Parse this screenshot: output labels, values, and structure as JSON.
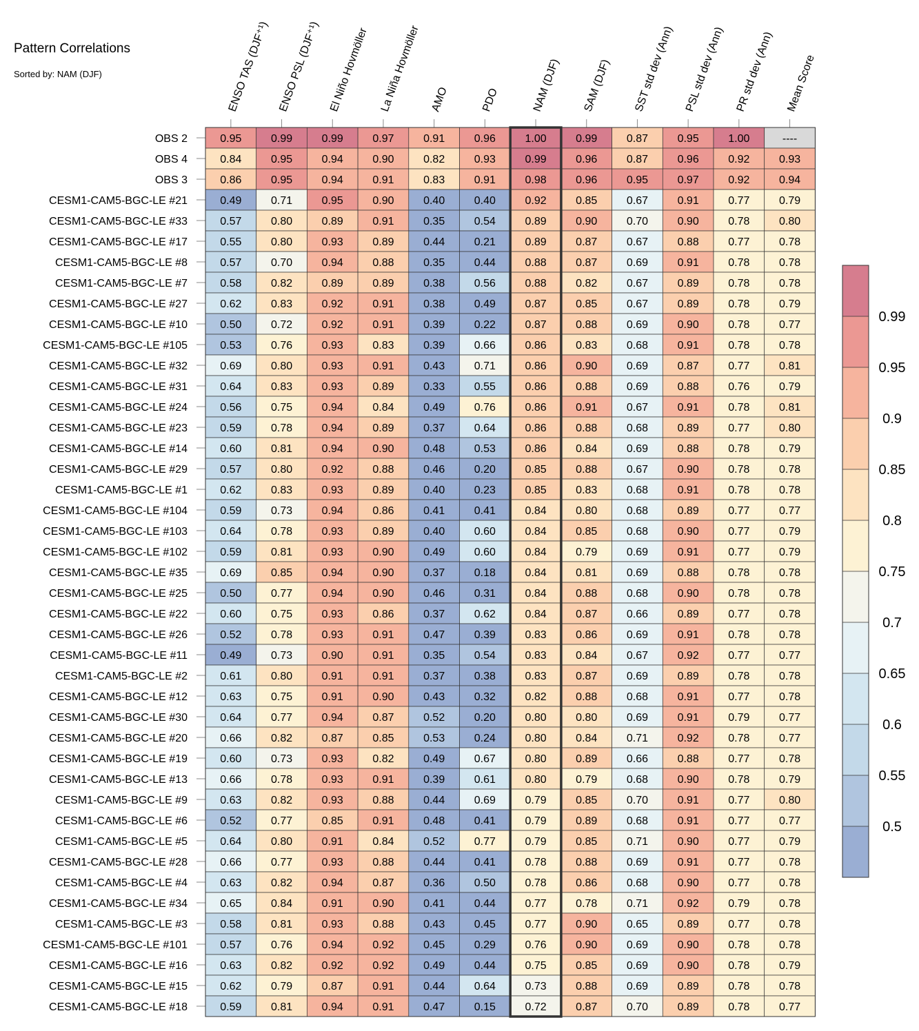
{
  "chart_data": {
    "type": "heatmap",
    "title": "Pattern Correlations",
    "subtitle": "Sorted by: NAM (DJF)",
    "highlighted_column": "NAM (DJF)",
    "columns": [
      "ENSO TAS (DJF⁺¹)",
      "ENSO PSL (DJF⁺¹)",
      "El Niño Hovmöller",
      "La Niña Hovmöller",
      "AMO",
      "PDO",
      "NAM (DJF)",
      "SAM (DJF)",
      "SST std dev (Ann)",
      "PSL std dev (Ann)",
      "PR std dev (Ann)",
      "Mean Score"
    ],
    "rows": [
      {
        "name": "OBS 2",
        "values": [
          "0.95",
          "0.99",
          "0.99",
          "0.97",
          "0.91",
          "0.96",
          "1.00",
          "0.99",
          "0.87",
          "0.95",
          "1.00",
          "----"
        ]
      },
      {
        "name": "OBS 4",
        "values": [
          "0.84",
          "0.95",
          "0.94",
          "0.90",
          "0.82",
          "0.93",
          "0.99",
          "0.96",
          "0.87",
          "0.96",
          "0.92",
          "0.93"
        ]
      },
      {
        "name": "OBS 3",
        "values": [
          "0.86",
          "0.95",
          "0.94",
          "0.91",
          "0.83",
          "0.91",
          "0.98",
          "0.96",
          "0.95",
          "0.97",
          "0.92",
          "0.94"
        ]
      },
      {
        "name": "CESM1-CAM5-BGC-LE #21",
        "values": [
          "0.49",
          "0.71",
          "0.95",
          "0.90",
          "0.40",
          "0.40",
          "0.92",
          "0.85",
          "0.67",
          "0.91",
          "0.77",
          "0.79"
        ]
      },
      {
        "name": "CESM1-CAM5-BGC-LE #33",
        "values": [
          "0.57",
          "0.80",
          "0.89",
          "0.91",
          "0.35",
          "0.54",
          "0.89",
          "0.90",
          "0.70",
          "0.90",
          "0.78",
          "0.80"
        ]
      },
      {
        "name": "CESM1-CAM5-BGC-LE #17",
        "values": [
          "0.55",
          "0.80",
          "0.93",
          "0.89",
          "0.44",
          "0.21",
          "0.89",
          "0.87",
          "0.67",
          "0.88",
          "0.77",
          "0.78"
        ]
      },
      {
        "name": "CESM1-CAM5-BGC-LE #8",
        "values": [
          "0.57",
          "0.70",
          "0.94",
          "0.88",
          "0.35",
          "0.44",
          "0.88",
          "0.87",
          "0.69",
          "0.91",
          "0.78",
          "0.78"
        ]
      },
      {
        "name": "CESM1-CAM5-BGC-LE #7",
        "values": [
          "0.58",
          "0.82",
          "0.89",
          "0.89",
          "0.38",
          "0.56",
          "0.88",
          "0.82",
          "0.67",
          "0.89",
          "0.78",
          "0.78"
        ]
      },
      {
        "name": "CESM1-CAM5-BGC-LE #27",
        "values": [
          "0.62",
          "0.83",
          "0.92",
          "0.91",
          "0.38",
          "0.49",
          "0.87",
          "0.85",
          "0.67",
          "0.89",
          "0.78",
          "0.79"
        ]
      },
      {
        "name": "CESM1-CAM5-BGC-LE #10",
        "values": [
          "0.50",
          "0.72",
          "0.92",
          "0.91",
          "0.39",
          "0.22",
          "0.87",
          "0.88",
          "0.69",
          "0.90",
          "0.78",
          "0.77"
        ]
      },
      {
        "name": "CESM1-CAM5-BGC-LE #105",
        "values": [
          "0.53",
          "0.76",
          "0.93",
          "0.83",
          "0.39",
          "0.66",
          "0.86",
          "0.83",
          "0.68",
          "0.91",
          "0.78",
          "0.78"
        ]
      },
      {
        "name": "CESM1-CAM5-BGC-LE #32",
        "values": [
          "0.69",
          "0.80",
          "0.93",
          "0.91",
          "0.43",
          "0.71",
          "0.86",
          "0.90",
          "0.69",
          "0.87",
          "0.77",
          "0.81"
        ]
      },
      {
        "name": "CESM1-CAM5-BGC-LE #31",
        "values": [
          "0.64",
          "0.83",
          "0.93",
          "0.89",
          "0.33",
          "0.55",
          "0.86",
          "0.88",
          "0.69",
          "0.88",
          "0.76",
          "0.79"
        ]
      },
      {
        "name": "CESM1-CAM5-BGC-LE #24",
        "values": [
          "0.56",
          "0.75",
          "0.94",
          "0.84",
          "0.49",
          "0.76",
          "0.86",
          "0.91",
          "0.67",
          "0.91",
          "0.78",
          "0.81"
        ]
      },
      {
        "name": "CESM1-CAM5-BGC-LE #23",
        "values": [
          "0.59",
          "0.78",
          "0.94",
          "0.89",
          "0.37",
          "0.64",
          "0.86",
          "0.88",
          "0.68",
          "0.89",
          "0.77",
          "0.80"
        ]
      },
      {
        "name": "CESM1-CAM5-BGC-LE #14",
        "values": [
          "0.60",
          "0.81",
          "0.94",
          "0.90",
          "0.48",
          "0.53",
          "0.86",
          "0.84",
          "0.69",
          "0.88",
          "0.78",
          "0.79"
        ]
      },
      {
        "name": "CESM1-CAM5-BGC-LE #29",
        "values": [
          "0.57",
          "0.80",
          "0.92",
          "0.88",
          "0.46",
          "0.20",
          "0.85",
          "0.88",
          "0.67",
          "0.90",
          "0.78",
          "0.78"
        ]
      },
      {
        "name": "CESM1-CAM5-BGC-LE #1",
        "values": [
          "0.62",
          "0.83",
          "0.93",
          "0.89",
          "0.40",
          "0.23",
          "0.85",
          "0.83",
          "0.68",
          "0.91",
          "0.78",
          "0.78"
        ]
      },
      {
        "name": "CESM1-CAM5-BGC-LE #104",
        "values": [
          "0.59",
          "0.73",
          "0.94",
          "0.86",
          "0.41",
          "0.41",
          "0.84",
          "0.80",
          "0.68",
          "0.89",
          "0.77",
          "0.77"
        ]
      },
      {
        "name": "CESM1-CAM5-BGC-LE #103",
        "values": [
          "0.64",
          "0.78",
          "0.93",
          "0.89",
          "0.40",
          "0.60",
          "0.84",
          "0.85",
          "0.68",
          "0.90",
          "0.77",
          "0.79"
        ]
      },
      {
        "name": "CESM1-CAM5-BGC-LE #102",
        "values": [
          "0.59",
          "0.81",
          "0.93",
          "0.90",
          "0.49",
          "0.60",
          "0.84",
          "0.79",
          "0.69",
          "0.91",
          "0.77",
          "0.79"
        ]
      },
      {
        "name": "CESM1-CAM5-BGC-LE #35",
        "values": [
          "0.69",
          "0.85",
          "0.94",
          "0.90",
          "0.37",
          "0.18",
          "0.84",
          "0.81",
          "0.69",
          "0.88",
          "0.78",
          "0.78"
        ]
      },
      {
        "name": "CESM1-CAM5-BGC-LE #25",
        "values": [
          "0.50",
          "0.77",
          "0.94",
          "0.90",
          "0.46",
          "0.31",
          "0.84",
          "0.88",
          "0.68",
          "0.90",
          "0.78",
          "0.78"
        ]
      },
      {
        "name": "CESM1-CAM5-BGC-LE #22",
        "values": [
          "0.60",
          "0.75",
          "0.93",
          "0.86",
          "0.37",
          "0.62",
          "0.84",
          "0.87",
          "0.66",
          "0.89",
          "0.77",
          "0.78"
        ]
      },
      {
        "name": "CESM1-CAM5-BGC-LE #26",
        "values": [
          "0.52",
          "0.78",
          "0.93",
          "0.91",
          "0.47",
          "0.39",
          "0.83",
          "0.86",
          "0.69",
          "0.91",
          "0.78",
          "0.78"
        ]
      },
      {
        "name": "CESM1-CAM5-BGC-LE #11",
        "values": [
          "0.49",
          "0.73",
          "0.90",
          "0.91",
          "0.35",
          "0.54",
          "0.83",
          "0.84",
          "0.67",
          "0.92",
          "0.77",
          "0.77"
        ]
      },
      {
        "name": "CESM1-CAM5-BGC-LE #2",
        "values": [
          "0.61",
          "0.80",
          "0.91",
          "0.91",
          "0.37",
          "0.38",
          "0.83",
          "0.87",
          "0.69",
          "0.89",
          "0.78",
          "0.78"
        ]
      },
      {
        "name": "CESM1-CAM5-BGC-LE #12",
        "values": [
          "0.63",
          "0.75",
          "0.91",
          "0.90",
          "0.43",
          "0.32",
          "0.82",
          "0.88",
          "0.68",
          "0.91",
          "0.77",
          "0.78"
        ]
      },
      {
        "name": "CESM1-CAM5-BGC-LE #30",
        "values": [
          "0.64",
          "0.77",
          "0.94",
          "0.87",
          "0.52",
          "0.20",
          "0.80",
          "0.80",
          "0.69",
          "0.91",
          "0.79",
          "0.77"
        ]
      },
      {
        "name": "CESM1-CAM5-BGC-LE #20",
        "values": [
          "0.66",
          "0.82",
          "0.87",
          "0.85",
          "0.53",
          "0.24",
          "0.80",
          "0.84",
          "0.71",
          "0.92",
          "0.78",
          "0.77"
        ]
      },
      {
        "name": "CESM1-CAM5-BGC-LE #19",
        "values": [
          "0.60",
          "0.73",
          "0.93",
          "0.82",
          "0.49",
          "0.67",
          "0.80",
          "0.89",
          "0.66",
          "0.88",
          "0.77",
          "0.78"
        ]
      },
      {
        "name": "CESM1-CAM5-BGC-LE #13",
        "values": [
          "0.66",
          "0.78",
          "0.93",
          "0.91",
          "0.39",
          "0.61",
          "0.80",
          "0.79",
          "0.68",
          "0.90",
          "0.78",
          "0.79"
        ]
      },
      {
        "name": "CESM1-CAM5-BGC-LE #9",
        "values": [
          "0.63",
          "0.82",
          "0.93",
          "0.88",
          "0.44",
          "0.69",
          "0.79",
          "0.85",
          "0.70",
          "0.91",
          "0.77",
          "0.80"
        ]
      },
      {
        "name": "CESM1-CAM5-BGC-LE #6",
        "values": [
          "0.52",
          "0.77",
          "0.85",
          "0.91",
          "0.48",
          "0.41",
          "0.79",
          "0.89",
          "0.68",
          "0.91",
          "0.77",
          "0.77"
        ]
      },
      {
        "name": "CESM1-CAM5-BGC-LE #5",
        "values": [
          "0.64",
          "0.80",
          "0.91",
          "0.84",
          "0.52",
          "0.77",
          "0.79",
          "0.85",
          "0.71",
          "0.90",
          "0.77",
          "0.79"
        ]
      },
      {
        "name": "CESM1-CAM5-BGC-LE #28",
        "values": [
          "0.66",
          "0.77",
          "0.93",
          "0.88",
          "0.44",
          "0.41",
          "0.78",
          "0.88",
          "0.69",
          "0.91",
          "0.77",
          "0.78"
        ]
      },
      {
        "name": "CESM1-CAM5-BGC-LE #4",
        "values": [
          "0.63",
          "0.82",
          "0.94",
          "0.87",
          "0.36",
          "0.50",
          "0.78",
          "0.86",
          "0.68",
          "0.90",
          "0.77",
          "0.78"
        ]
      },
      {
        "name": "CESM1-CAM5-BGC-LE #34",
        "values": [
          "0.65",
          "0.84",
          "0.91",
          "0.90",
          "0.41",
          "0.44",
          "0.77",
          "0.78",
          "0.71",
          "0.92",
          "0.79",
          "0.78"
        ]
      },
      {
        "name": "CESM1-CAM5-BGC-LE #3",
        "values": [
          "0.58",
          "0.81",
          "0.93",
          "0.88",
          "0.43",
          "0.45",
          "0.77",
          "0.90",
          "0.65",
          "0.89",
          "0.77",
          "0.78"
        ]
      },
      {
        "name": "CESM1-CAM5-BGC-LE #101",
        "values": [
          "0.57",
          "0.76",
          "0.94",
          "0.92",
          "0.45",
          "0.29",
          "0.76",
          "0.90",
          "0.69",
          "0.90",
          "0.78",
          "0.78"
        ]
      },
      {
        "name": "CESM1-CAM5-BGC-LE #16",
        "values": [
          "0.63",
          "0.82",
          "0.92",
          "0.92",
          "0.49",
          "0.44",
          "0.75",
          "0.85",
          "0.69",
          "0.90",
          "0.78",
          "0.79"
        ]
      },
      {
        "name": "CESM1-CAM5-BGC-LE #15",
        "values": [
          "0.62",
          "0.79",
          "0.87",
          "0.91",
          "0.44",
          "0.64",
          "0.73",
          "0.88",
          "0.69",
          "0.89",
          "0.78",
          "0.78"
        ]
      },
      {
        "name": "CESM1-CAM5-BGC-LE #18",
        "values": [
          "0.59",
          "0.81",
          "0.94",
          "0.91",
          "0.47",
          "0.15",
          "0.72",
          "0.87",
          "0.70",
          "0.89",
          "0.78",
          "0.77"
        ]
      }
    ],
    "colorbar": {
      "boundaries": [
        0.5,
        0.55,
        0.6,
        0.65,
        0.7,
        0.75,
        0.8,
        0.85,
        0.9,
        0.95,
        0.99
      ],
      "tick_labels": [
        "0.5",
        "0.55",
        "0.6",
        "0.65",
        "0.7",
        "0.75",
        "0.8",
        "0.85",
        "0.9",
        "0.95",
        "0.99"
      ],
      "colors": [
        "#9aaed3",
        "#b0c5df",
        "#c3d9e9",
        "#d3e6f0",
        "#e7f2f5",
        "#f4f4ec",
        "#fdf2d4",
        "#fde3c1",
        "#fbcfae",
        "#f6b49e",
        "#eb9893",
        "#d67d8e"
      ],
      "missing_color": "#d9d9d9"
    }
  }
}
